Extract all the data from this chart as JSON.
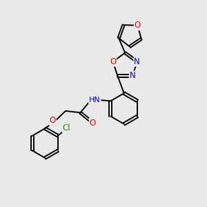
{
  "bg_color": "#e9e9e9",
  "atom_colors": {
    "O": "#dd0000",
    "N": "#0000cc",
    "Cl": "#228800",
    "C": "#000000",
    "H": "#555555"
  },
  "bond_width": 1.4,
  "font_size": 8.5
}
